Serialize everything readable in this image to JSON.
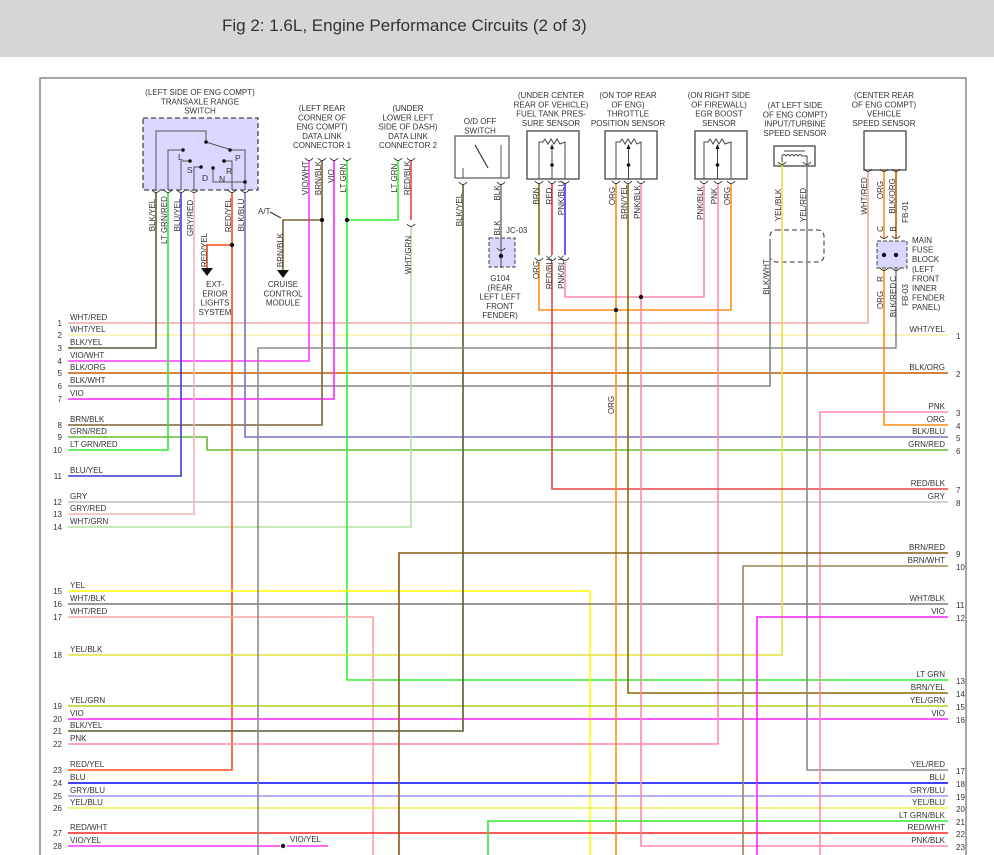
{
  "header": {
    "title": "Fig 2: 1.6L, Engine Performance Circuits (2 of 3)"
  },
  "left_circuits": [
    {
      "num": "1",
      "label": "WHT/RED"
    },
    {
      "num": "2",
      "label": "WHT/YEL"
    },
    {
      "num": "3",
      "label": "BLK/YEL"
    },
    {
      "num": "4",
      "label": "VIO/WHT"
    },
    {
      "num": "5",
      "label": "BLK/ORG"
    },
    {
      "num": "6",
      "label": "BLK/WHT"
    },
    {
      "num": "7",
      "label": "VIO"
    },
    {
      "num": "8",
      "label": "BRN/BLK"
    },
    {
      "num": "9",
      "label": "GRN/RED"
    },
    {
      "num": "10",
      "label": "LT GRN/RED"
    },
    {
      "num": "11",
      "label": "BLU/YEL"
    },
    {
      "num": "12",
      "label": "GRY"
    },
    {
      "num": "13",
      "label": "GRY/RED"
    },
    {
      "num": "14",
      "label": "WHT/GRN"
    },
    {
      "num": "15",
      "label": "YEL"
    },
    {
      "num": "16",
      "label": "WHT/BLK"
    },
    {
      "num": "17",
      "label": "WHT/RED"
    },
    {
      "num": "18",
      "label": "YEL/BLK"
    },
    {
      "num": "19",
      "label": "YEL/GRN"
    },
    {
      "num": "20",
      "label": "VIO"
    },
    {
      "num": "21",
      "label": "BLK/YEL"
    },
    {
      "num": "22",
      "label": "PNK"
    },
    {
      "num": "23",
      "label": "RED/YEL"
    },
    {
      "num": "24",
      "label": "BLU"
    },
    {
      "num": "25",
      "label": "GRY/BLU"
    },
    {
      "num": "26",
      "label": "YEL/BLU"
    },
    {
      "num": "27",
      "label": "RED/WHT"
    },
    {
      "num": "28",
      "label": "VIO/YEL"
    }
  ],
  "right_circuits": [
    {
      "num": "1",
      "label": "WHT/YEL"
    },
    {
      "num": "2",
      "label": "BLK/ORG"
    },
    {
      "num": "3",
      "label": "PNK"
    },
    {
      "num": "4",
      "label": "ORG"
    },
    {
      "num": "5",
      "label": "BLK/BLU"
    },
    {
      "num": "6",
      "label": "GRN/RED"
    },
    {
      "num": "7",
      "label": "RED/BLK"
    },
    {
      "num": "8",
      "label": "GRY"
    },
    {
      "num": "9",
      "label": "BRN/RED"
    },
    {
      "num": "10",
      "label": "BRN/WHT"
    },
    {
      "num": "11",
      "label": "WHT/BLK"
    },
    {
      "num": "12",
      "label": "VIO"
    },
    {
      "num": "13",
      "label": "LT GRN"
    },
    {
      "num": "14",
      "label": "BRN/YEL"
    },
    {
      "num": "15",
      "label": "YEL/GRN"
    },
    {
      "num": "16",
      "label": "VIO"
    },
    {
      "num": "17",
      "label": "YEL/RED"
    },
    {
      "num": "18",
      "label": "BLU"
    },
    {
      "num": "19",
      "label": "GRY/BLU"
    },
    {
      "num": "20",
      "label": "YEL/BLU"
    },
    {
      "num": "21",
      "label": "LT GRN/BLK"
    },
    {
      "num": "22",
      "label": "RED/WHT"
    },
    {
      "num": "23",
      "label": "PNK/BLK"
    }
  ],
  "components": [
    {
      "id": "transaxle-range-switch",
      "lines": [
        "(LEFT SIDE OF ENG COMPT)",
        "TRANSAXLE RANGE",
        "SWITCH"
      ]
    },
    {
      "id": "data-link-connector-1",
      "lines": [
        "(LEFT REAR",
        "CORNER OF",
        "ENG COMPT)",
        "DATA LINK",
        "CONNECTOR 1"
      ]
    },
    {
      "id": "data-link-connector-2",
      "lines": [
        "(UNDER",
        "LOWER LEFT",
        "SIDE OF DASH)",
        "DATA LINK",
        "CONNECTOR 2"
      ]
    },
    {
      "id": "od-off-switch",
      "lines": [
        "O/D OFF",
        "SWITCH"
      ]
    },
    {
      "id": "fuel-tank-pressure-sensor",
      "lines": [
        "(UNDER CENTER",
        "REAR OF VEHICLE)",
        "FUEL TANK PRES-",
        "SURE SENSOR"
      ]
    },
    {
      "id": "throttle-position-sensor",
      "lines": [
        "(ON TOP REAR",
        "OF ENG)",
        "THROTTLE",
        "POSITION SENSOR"
      ]
    },
    {
      "id": "egr-boost-sensor",
      "lines": [
        "(ON RIGHT SIDE",
        "OF FIREWALL)",
        "EGR BOOST",
        "SENSOR"
      ]
    },
    {
      "id": "input-turbine-speed-sensor",
      "lines": [
        "(AT LEFT SIDE",
        "OF ENG COMPT)",
        "INPUT/TURBINE",
        "SPEED SENSOR"
      ]
    },
    {
      "id": "vehicle-speed-sensor",
      "lines": [
        "(CENTER REAR",
        "OF ENG COMPT)",
        "VEHICLE",
        "SPEED SENSOR"
      ]
    },
    {
      "id": "exterior-lights-system",
      "lines": [
        "EXT-",
        "ERIOR",
        "LIGHTS",
        "SYSTEM"
      ]
    },
    {
      "id": "cruise-control-module",
      "lines": [
        "CRUISE",
        "CONTROL",
        "MODULE"
      ]
    },
    {
      "id": "ground-g104",
      "lines": [
        "G104",
        "(REAR",
        "LEFT LEFT",
        "FRONT",
        "FENDER)"
      ]
    },
    {
      "id": "main-fuse-block",
      "lines": [
        "MAIN",
        "FUSE",
        "BLOCK",
        "(LEFT",
        "FRONT",
        "INNER",
        "FENDER",
        "PANEL)"
      ]
    }
  ],
  "switch_positions": [
    "L",
    "S",
    "D",
    "N",
    "R",
    "P"
  ],
  "wire_labels": [
    "BLK/YEL",
    "LT GRN/RED",
    "BLU/YEL",
    "GRY/RED",
    "RED/YEL",
    "BLK/BLU",
    "RED/YEL",
    "BRN/BLK",
    "VIO/WHT",
    "BRN/BLK",
    "VIO",
    "LT GRN",
    "LT GRN",
    "RED/BLK",
    "WHT/GRN",
    "BLK/YEL",
    "BLK",
    "BLK",
    "BRN",
    "RED",
    "PNK/BLU",
    "ORG",
    "RED/BLK",
    "PNK/BLK",
    "ORG",
    "BRN/YEL",
    "PNK/BLK",
    "ORG",
    "PNK/BLK",
    "PNK",
    "ORG",
    "YEL/BLK",
    "YEL/RED",
    "BLK/WHT",
    "WHT/RED",
    "ORG",
    "BLK/ORG",
    "FB-01",
    "C",
    "B",
    "R",
    "C",
    "ORG",
    "BLK/RED",
    "FB-03"
  ],
  "inline_labels": [
    "A/T",
    "JC-03",
    "VIO/YEL"
  ],
  "wire_colors": {
    "WHT/RED": "#f5a6a6",
    "WHT/YEL": "#f6f1a8",
    "BLK/YEL": "#5c5a38",
    "VIO/WHT": "#ff3cff",
    "VIO": "#ff22ff",
    "BLK/ORG": "#c85a00",
    "BLK/WHT": "#858585",
    "BRN/BLK": "#7f6232",
    "GRN/RED": "#66bb33",
    "LT GRN/RED": "#33e833",
    "BLU/YEL": "#3c3cd8",
    "GRY": "#bdbdbd",
    "GRY/RED": "#f0b4b4",
    "WHT/GRN": "#b4e0a4",
    "YEL": "#ffff00",
    "WHT/BLK": "#7a7a7a",
    "YEL/BLK": "#e2e23c",
    "YEL/GRN": "#a8d41c",
    "PNK": "#ff8aa8",
    "RED/YEL": "#ff4a1c",
    "BLU": "#0000ff",
    "GRY/BLU": "#9a9af0",
    "YEL/BLU": "#eeee55",
    "RED/WHT": "#ff2222",
    "VIO/YEL": "#ff33ff",
    "LT GRN": "#33ee33",
    "ORG": "#ff8c1a",
    "RED/BLK": "#e84444",
    "BRN/YEL": "#8a6800",
    "BRN/RED": "#8a5a14",
    "BRN/WHT": "#a08458",
    "BLK/BLU": "#7474c4",
    "BLK/RED": "#8c8c8c",
    "LT GRN/BLK": "#33e833",
    "PNK/BLK": "#ff8aa8",
    "PNK/BLU": "#4b2cf0",
    "RED": "#ff2a2a",
    "BRN": "#8a6a10",
    "BLK": "#7a7a7a"
  },
  "component_fill": "#d8d8ff"
}
